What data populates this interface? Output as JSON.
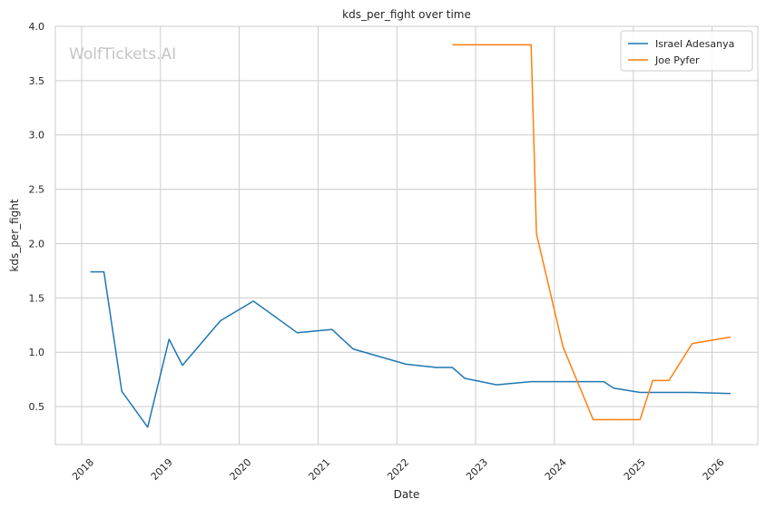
{
  "chart_data": {
    "type": "line",
    "title": "kds_per_fight over time",
    "xlabel": "Date",
    "ylabel": "kds_per_fight",
    "watermark": "WolfTickets.AI",
    "x_type": "date",
    "xlim": [
      "2017-09-01",
      "2026-08-01"
    ],
    "ylim": [
      0.15,
      4.0
    ],
    "x_ticks": [
      "2018-01-01",
      "2019-01-01",
      "2020-01-01",
      "2021-01-01",
      "2022-01-01",
      "2023-01-01",
      "2024-01-01",
      "2025-01-01",
      "2026-01-01"
    ],
    "x_tick_labels": [
      "2018",
      "2019",
      "2020",
      "2021",
      "2022",
      "2023",
      "2024",
      "2025",
      "2026"
    ],
    "y_ticks": [
      0.5,
      1.0,
      1.5,
      2.0,
      2.5,
      3.0,
      3.5,
      4.0
    ],
    "y_tick_labels": [
      "0.5",
      "1.0",
      "1.5",
      "2.0",
      "2.5",
      "3.0",
      "3.5",
      "4.0"
    ],
    "grid": true,
    "legend_position": "top-right",
    "series": [
      {
        "name": "Israel Adesanya",
        "color": "#1f77b4",
        "points": [
          {
            "x": "2018-02-10",
            "y": 1.74
          },
          {
            "x": "2018-04-14",
            "y": 1.74
          },
          {
            "x": "2018-07-06",
            "y": 0.64
          },
          {
            "x": "2018-11-03",
            "y": 0.31
          },
          {
            "x": "2019-02-10",
            "y": 1.12
          },
          {
            "x": "2019-04-13",
            "y": 0.88
          },
          {
            "x": "2019-10-06",
            "y": 1.29
          },
          {
            "x": "2020-03-07",
            "y": 1.47
          },
          {
            "x": "2020-09-26",
            "y": 1.18
          },
          {
            "x": "2021-03-06",
            "y": 1.21
          },
          {
            "x": "2021-06-12",
            "y": 1.03
          },
          {
            "x": "2022-02-12",
            "y": 0.89
          },
          {
            "x": "2022-07-02",
            "y": 0.86
          },
          {
            "x": "2022-09-15",
            "y": 0.86
          },
          {
            "x": "2022-11-12",
            "y": 0.76
          },
          {
            "x": "2023-04-08",
            "y": 0.7
          },
          {
            "x": "2023-09-15",
            "y": 0.73
          },
          {
            "x": "2024-08-17",
            "y": 0.73
          },
          {
            "x": "2024-10-01",
            "y": 0.67
          },
          {
            "x": "2025-02-01",
            "y": 0.63
          },
          {
            "x": "2025-10-01",
            "y": 0.63
          },
          {
            "x": "2026-03-28",
            "y": 0.62
          }
        ]
      },
      {
        "name": "Joe Pyfer",
        "color": "#ff7f0e",
        "points": [
          {
            "x": "2022-09-15",
            "y": 3.83
          },
          {
            "x": "2023-09-15",
            "y": 3.83
          },
          {
            "x": "2023-10-10",
            "y": 2.09
          },
          {
            "x": "2024-02-10",
            "y": 1.05
          },
          {
            "x": "2024-06-29",
            "y": 0.38
          },
          {
            "x": "2025-02-01",
            "y": 0.38
          },
          {
            "x": "2025-04-01",
            "y": 0.74
          },
          {
            "x": "2025-06-15",
            "y": 0.74
          },
          {
            "x": "2025-10-01",
            "y": 1.08
          },
          {
            "x": "2026-03-28",
            "y": 1.14
          }
        ]
      }
    ]
  }
}
